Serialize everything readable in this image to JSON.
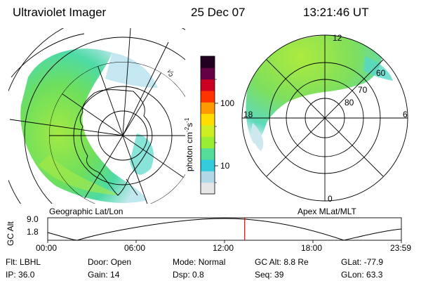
{
  "header": {
    "instrument": "Ultraviolet Imager",
    "date": "25 Dec 07",
    "time": "13:21:46 UT"
  },
  "left_panel": {
    "caption": "Geographic Lat/Lon"
  },
  "right_panel": {
    "caption": "Apex MLat/MLT",
    "mlt_labels": [
      "12",
      "18",
      "6",
      "0"
    ],
    "lat_labels": [
      "60",
      "70",
      "80"
    ]
  },
  "colorbar": {
    "unit_label": "photon cm",
    "unit_exp1": "-2",
    "unit_s": "s",
    "unit_exp2": "-1",
    "tick_labels": [
      "100",
      "10"
    ],
    "colors": [
      "#e6e6e6",
      "#b0d8e6",
      "#33ccdd",
      "#55dd99",
      "#99ee33",
      "#ccee22",
      "#ffdd00",
      "#ff9900",
      "#ff3300",
      "#cc0022",
      "#660044",
      "#220022"
    ]
  },
  "altitude_strip": {
    "axis_label": "GC Alt",
    "y_labels": [
      "9.0",
      "1.8"
    ],
    "time_labels": [
      "00:00",
      "06:00",
      "12:00",
      "18:00",
      "23:59"
    ],
    "marker_time_fraction": 0.557
  },
  "info": {
    "row1": [
      {
        "label": "Flt:",
        "value": "LBHL"
      },
      {
        "label": "Door:",
        "value": "Open"
      },
      {
        "label": "Mode:",
        "value": "Normal"
      },
      {
        "label": "GC Alt:",
        "value": "8.8 Re"
      },
      {
        "label": "GLat:",
        "value": "-77.9"
      }
    ],
    "row2": [
      {
        "label": "IP:",
        "value": "36.0"
      },
      {
        "label": "Gain:",
        "value": "14"
      },
      {
        "label": "Dsp:",
        "value": "0.8"
      },
      {
        "label": "Seq:",
        "value": "39"
      },
      {
        "label": "GLon:",
        "value": "63.3"
      }
    ]
  }
}
